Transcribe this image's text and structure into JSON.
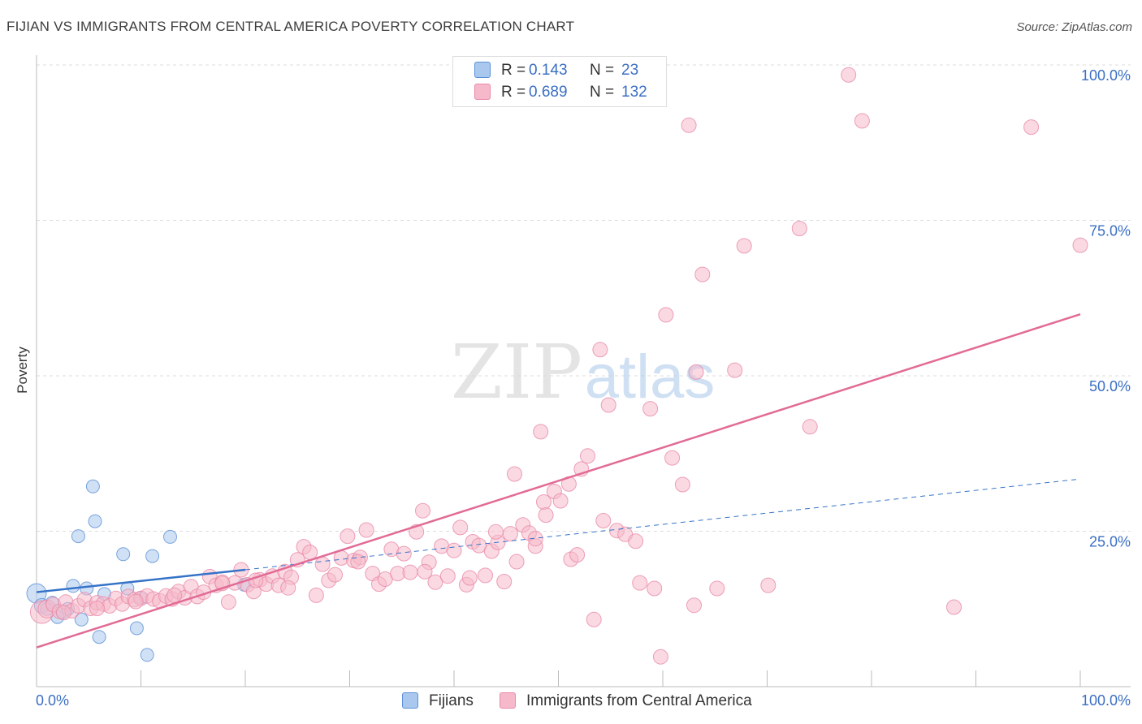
{
  "title": "FIJIAN VS IMMIGRANTS FROM CENTRAL AMERICA POVERTY CORRELATION CHART",
  "source": "Source: ZipAtlas.com",
  "colors": {
    "fijian_fill": "#aac8ee",
    "fijian_stroke": "#5b8fd6",
    "fijian_line": "#3573c8",
    "central_fill": "#f5b9cb",
    "central_stroke": "#e88aa8",
    "central_line": "#e26b95",
    "axis_label": "#3b6fc4",
    "grid": "#dddddd"
  },
  "legend_top": {
    "rows": [
      {
        "series": "fijian",
        "r_label": "R =",
        "r_value": "0.143",
        "n_label": "N =",
        "n_value": "23"
      },
      {
        "series": "central",
        "r_label": "R =",
        "r_value": "0.689",
        "n_label": "N =",
        "n_value": "132"
      }
    ]
  },
  "legend_bottom": {
    "items": [
      {
        "series": "fijian",
        "label": "Fijians"
      },
      {
        "series": "central",
        "label": "Immigrants from Central America"
      }
    ]
  },
  "watermark": {
    "zip": "ZIP",
    "atlas": "atlas"
  },
  "chart_data": {
    "type": "scatter",
    "title": "FIJIAN VS IMMIGRANTS FROM CENTRAL AMERICA POVERTY CORRELATION CHART",
    "xlabel": "",
    "ylabel": "Poverty",
    "xlim": [
      0,
      100
    ],
    "ylim": [
      0,
      100
    ],
    "x_tick_labels": [
      {
        "value": 0,
        "label": "0.0%"
      },
      {
        "value": 100,
        "label": "100.0%"
      }
    ],
    "y_tick_labels": [
      {
        "value": 25,
        "label": "25.0%"
      },
      {
        "value": 50,
        "label": "50.0%"
      },
      {
        "value": 75,
        "label": "75.0%"
      },
      {
        "value": 100,
        "label": "100.0%"
      }
    ],
    "x_minor_ticks": [
      0,
      10,
      20,
      30,
      40,
      50,
      60,
      70,
      80,
      90,
      100
    ],
    "series": [
      {
        "name": "Fijians",
        "key": "fijian",
        "r": 0.143,
        "n": 23,
        "trend": {
          "x0": 0,
          "y0": 15.2,
          "x1": 20,
          "y1": 18.8,
          "extend_to_x": 100,
          "extend_to_y": 33.4
        },
        "points": [
          [
            0,
            15.0,
            12
          ],
          [
            0.5,
            13.0,
            9
          ],
          [
            1.0,
            12.5,
            8
          ],
          [
            1.5,
            13.5,
            8
          ],
          [
            2.0,
            11.2,
            8
          ],
          [
            2.5,
            12.0,
            8
          ],
          [
            3.0,
            12.5,
            8
          ],
          [
            3.5,
            16.2,
            8
          ],
          [
            4.0,
            24.2,
            8
          ],
          [
            4.3,
            10.8,
            8
          ],
          [
            4.8,
            15.8,
            8
          ],
          [
            5.4,
            32.2,
            8
          ],
          [
            5.6,
            26.6,
            8
          ],
          [
            6.0,
            8.0,
            8
          ],
          [
            6.5,
            14.9,
            8
          ],
          [
            8.3,
            21.3,
            8
          ],
          [
            8.7,
            15.8,
            8
          ],
          [
            9.6,
            9.4,
            8
          ],
          [
            10.0,
            14.3,
            8
          ],
          [
            10.6,
            5.1,
            8
          ],
          [
            11.1,
            21.0,
            8
          ],
          [
            12.8,
            24.1,
            8
          ],
          [
            19.9,
            16.4,
            8
          ]
        ]
      },
      {
        "name": "Immigrants from Central America",
        "key": "central",
        "r": 0.689,
        "n": 132,
        "trend": {
          "x0": 0,
          "y0": 6.3,
          "x1": 100,
          "y1": 59.9
        },
        "points": [
          [
            0.5,
            12.0,
            14
          ],
          [
            1.0,
            12.5,
            11
          ],
          [
            1.6,
            13.2,
            9
          ],
          [
            2.2,
            12.1,
            9
          ],
          [
            2.8,
            13.6,
            9
          ],
          [
            3.4,
            12.2,
            9
          ],
          [
            4.0,
            13.0,
            9
          ],
          [
            4.6,
            14.0,
            9
          ],
          [
            5.2,
            12.6,
            9
          ],
          [
            5.8,
            13.5,
            9
          ],
          [
            6.4,
            13.3,
            9
          ],
          [
            7.0,
            13.0,
            9
          ],
          [
            7.6,
            14.2,
            9
          ],
          [
            8.2,
            13.3,
            9
          ],
          [
            8.8,
            14.5,
            9
          ],
          [
            9.4,
            14.0,
            9
          ],
          [
            10.0,
            14.2,
            9
          ],
          [
            10.6,
            14.6,
            9
          ],
          [
            11.2,
            14.1,
            9
          ],
          [
            11.8,
            13.8,
            9
          ],
          [
            12.4,
            14.6,
            9
          ],
          [
            13.0,
            14.1,
            9
          ],
          [
            13.6,
            15.3,
            9
          ],
          [
            14.2,
            14.3,
            9
          ],
          [
            14.8,
            16.1,
            9
          ],
          [
            15.4,
            14.5,
            9
          ],
          [
            16.0,
            15.2,
            9
          ],
          [
            16.6,
            17.7,
            9
          ],
          [
            17.2,
            16.3,
            9
          ],
          [
            17.8,
            16.8,
            9
          ],
          [
            18.4,
            13.6,
            9
          ],
          [
            19.0,
            16.7,
            9
          ],
          [
            19.6,
            18.8,
            9
          ],
          [
            20.2,
            16.4,
            9
          ],
          [
            20.8,
            15.3,
            9
          ],
          [
            21.4,
            17.2,
            9
          ],
          [
            22.0,
            16.5,
            9
          ],
          [
            22.6,
            17.8,
            9
          ],
          [
            23.2,
            16.3,
            9
          ],
          [
            23.8,
            18.5,
            9
          ],
          [
            24.4,
            17.6,
            9
          ],
          [
            25.0,
            20.4,
            9
          ],
          [
            25.6,
            22.5,
            9
          ],
          [
            26.2,
            21.6,
            9
          ],
          [
            26.8,
            14.7,
            9
          ],
          [
            27.4,
            19.7,
            9
          ],
          [
            28.0,
            17.1,
            9
          ],
          [
            28.6,
            18.0,
            9
          ],
          [
            29.2,
            20.7,
            9
          ],
          [
            29.8,
            24.2,
            9
          ],
          [
            30.4,
            20.3,
            9
          ],
          [
            31.0,
            20.8,
            9
          ],
          [
            31.6,
            25.2,
            9
          ],
          [
            32.2,
            18.2,
            9
          ],
          [
            32.8,
            16.5,
            9
          ],
          [
            33.4,
            17.3,
            9
          ],
          [
            34.0,
            22.1,
            9
          ],
          [
            34.6,
            18.2,
            9
          ],
          [
            35.2,
            21.4,
            9
          ],
          [
            35.8,
            18.4,
            9
          ],
          [
            36.4,
            24.9,
            9
          ],
          [
            37.0,
            28.3,
            9
          ],
          [
            37.6,
            20.0,
            9
          ],
          [
            38.2,
            16.8,
            9
          ],
          [
            38.8,
            22.6,
            9
          ],
          [
            39.4,
            17.8,
            9
          ],
          [
            40.0,
            21.9,
            9
          ],
          [
            40.6,
            25.6,
            9
          ],
          [
            41.2,
            16.4,
            9
          ],
          [
            41.8,
            23.3,
            9
          ],
          [
            42.4,
            22.7,
            9
          ],
          [
            43.0,
            17.9,
            9
          ],
          [
            43.6,
            21.8,
            9
          ],
          [
            44.2,
            23.2,
            9
          ],
          [
            44.8,
            16.9,
            9
          ],
          [
            45.4,
            24.6,
            9
          ],
          [
            46.0,
            20.1,
            9
          ],
          [
            46.6,
            26.0,
            9
          ],
          [
            47.2,
            24.7,
            9
          ],
          [
            47.8,
            22.6,
            9
          ],
          [
            30.8,
            20.1,
            9
          ],
          [
            37.2,
            18.5,
            9
          ],
          [
            41.5,
            17.5,
            9
          ],
          [
            44.0,
            24.9,
            9
          ],
          [
            48.3,
            41.0,
            9
          ],
          [
            45.8,
            34.2,
            9
          ],
          [
            47.8,
            23.8,
            9
          ],
          [
            48.6,
            29.7,
            9
          ],
          [
            48.8,
            27.6,
            9
          ],
          [
            49.6,
            31.4,
            9
          ],
          [
            50.2,
            29.9,
            9
          ],
          [
            51.0,
            32.6,
            9
          ],
          [
            51.2,
            20.5,
            9
          ],
          [
            51.8,
            21.2,
            9
          ],
          [
            52.2,
            35.0,
            9
          ],
          [
            52.8,
            37.1,
            9
          ],
          [
            53.4,
            10.8,
            9
          ],
          [
            54.0,
            54.2,
            9
          ],
          [
            54.3,
            26.7,
            9
          ],
          [
            54.8,
            45.3,
            9
          ],
          [
            55.6,
            25.1,
            9
          ],
          [
            56.4,
            24.5,
            9
          ],
          [
            57.4,
            23.4,
            9
          ],
          [
            57.8,
            16.7,
            9
          ],
          [
            58.8,
            44.7,
            9
          ],
          [
            59.2,
            15.8,
            9
          ],
          [
            59.8,
            4.8,
            9
          ],
          [
            60.3,
            59.8,
            9
          ],
          [
            60.9,
            36.8,
            9
          ],
          [
            61.9,
            32.5,
            9
          ],
          [
            62.5,
            90.3,
            9
          ],
          [
            63.0,
            13.1,
            9
          ],
          [
            63.2,
            50.6,
            9
          ],
          [
            63.8,
            66.3,
            9
          ],
          [
            65.2,
            15.8,
            9
          ],
          [
            66.9,
            50.9,
            9
          ],
          [
            67.8,
            70.9,
            9
          ],
          [
            70.1,
            16.3,
            9
          ],
          [
            73.1,
            73.7,
            9
          ],
          [
            74.1,
            41.8,
            9
          ],
          [
            77.8,
            98.4,
            9
          ],
          [
            79.1,
            91.0,
            9
          ],
          [
            87.9,
            12.8,
            9
          ],
          [
            95.3,
            90.0,
            9
          ],
          [
            100.0,
            71.0,
            9
          ],
          [
            2.6,
            11.9,
            9
          ],
          [
            5.8,
            12.6,
            9
          ],
          [
            9.5,
            13.7,
            9
          ],
          [
            13.2,
            14.7,
            9
          ],
          [
            17.8,
            16.6,
            9
          ],
          [
            21.0,
            17.1,
            9
          ],
          [
            24.1,
            15.9,
            9
          ]
        ]
      }
    ]
  }
}
